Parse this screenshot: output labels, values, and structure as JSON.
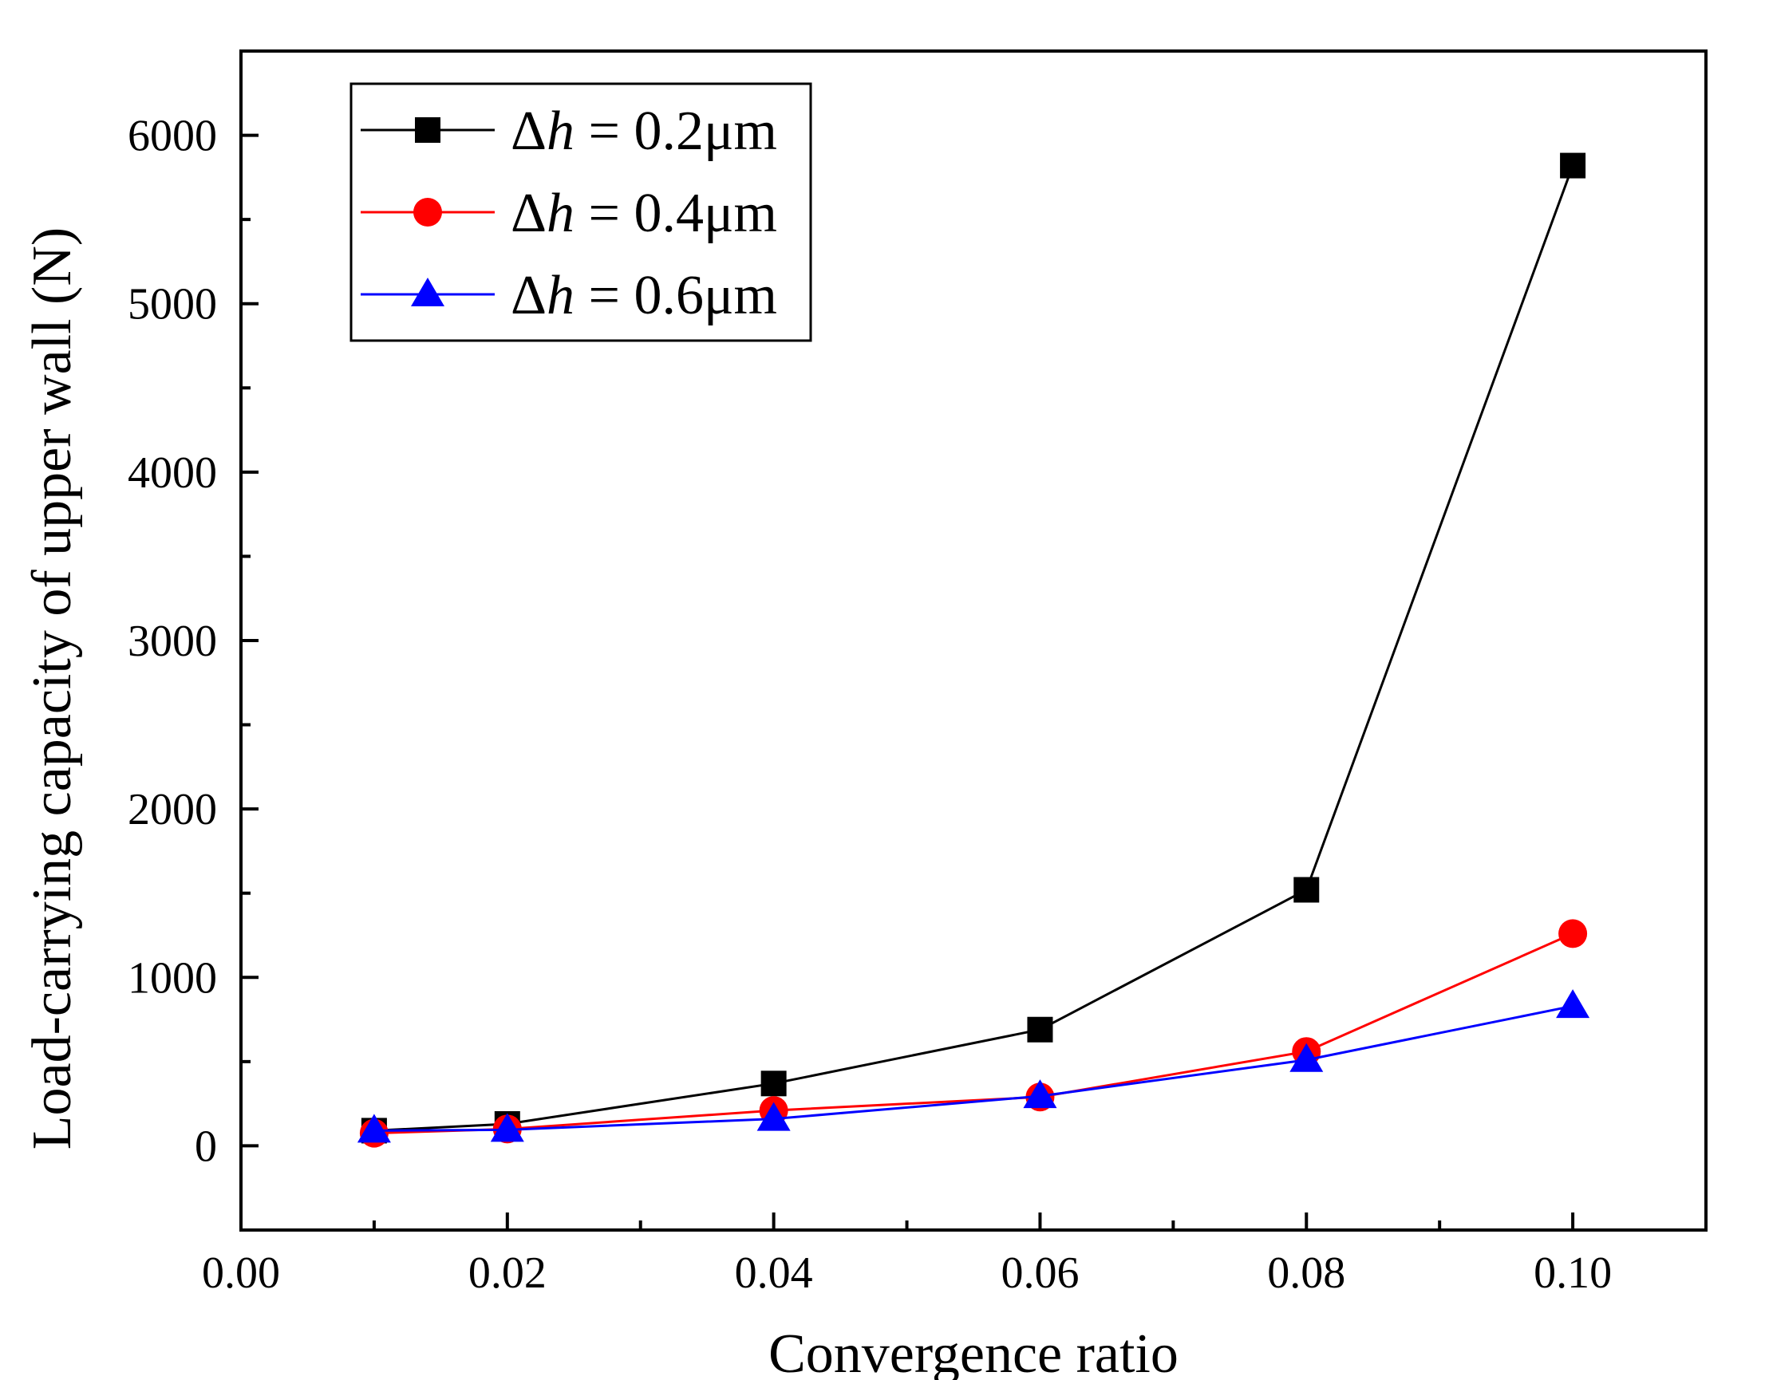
{
  "chart_data": {
    "type": "line",
    "title": "",
    "xlabel": "Convergence ratio",
    "ylabel": "Load-carrying capacity of upper wall (N)",
    "xlim": [
      0.0,
      0.11
    ],
    "ylim": [
      -500,
      6500
    ],
    "xticks": [
      0.0,
      0.02,
      0.04,
      0.06,
      0.08,
      0.1
    ],
    "xtick_labels": [
      "0.00",
      "0.02",
      "0.04",
      "0.06",
      "0.08",
      "0.10"
    ],
    "yticks": [
      0,
      1000,
      2000,
      3000,
      4000,
      5000,
      6000
    ],
    "ytick_labels": [
      "0",
      "1000",
      "2000",
      "3000",
      "4000",
      "5000",
      "6000"
    ],
    "x": [
      0.01,
      0.02,
      0.04,
      0.06,
      0.08,
      0.1
    ],
    "legend_position": "top-left",
    "series": [
      {
        "name": "Δh = 0.2μm",
        "legend_prefix": "Δ",
        "legend_var": "h",
        "legend_rest": " = 0.2μm",
        "color": "#000000",
        "marker": "square",
        "values": [
          90,
          130,
          370,
          690,
          1520,
          5820
        ]
      },
      {
        "name": "Δh = 0.4μm",
        "legend_prefix": "Δ",
        "legend_var": "h",
        "legend_rest": " = 0.4μm",
        "color": "#ff0000",
        "marker": "circle",
        "values": [
          75,
          100,
          210,
          290,
          560,
          1260
        ]
      },
      {
        "name": "Δh = 0.6μm",
        "legend_prefix": "Δ",
        "legend_var": "h",
        "legend_rest": " = 0.6μm",
        "color": "#0000ff",
        "marker": "triangle",
        "values": [
          90,
          95,
          160,
          295,
          510,
          830
        ]
      }
    ]
  }
}
